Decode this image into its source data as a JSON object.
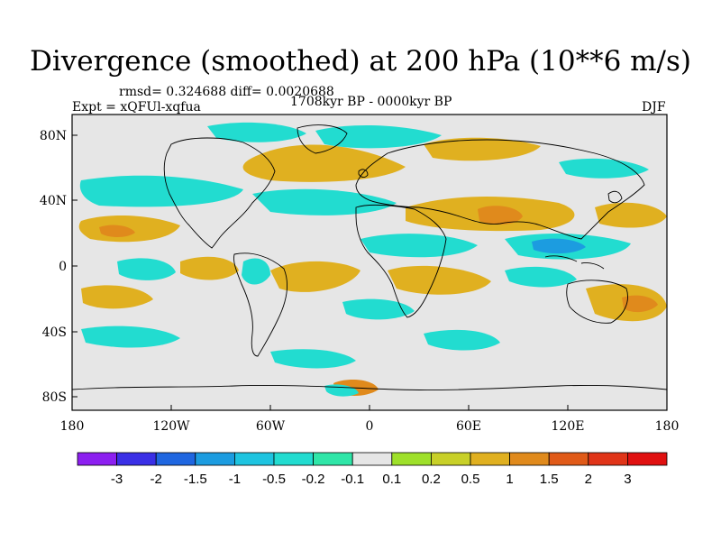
{
  "title": "Divergence (smoothed) at 200 hPa (10**6 m/s)",
  "stats": "rmsd= 0.324688 diff= 0.0020688",
  "experiment": "Expt = xQFUl-xqfua",
  "period": "1708kyr BP - 0000kyr BP",
  "season": "DJF",
  "lat_labels": [
    "80N",
    "40N",
    "0",
    "40S",
    "80S"
  ],
  "lon_labels": [
    "180",
    "120W",
    "60W",
    "0",
    "60E",
    "120E",
    "180"
  ],
  "colorbar": {
    "labels": [
      "-3",
      "-2",
      "-1.5",
      "-1",
      "-0.5",
      "-0.2",
      "-0.1",
      "0.1",
      "0.2",
      "0.5",
      "1",
      "1.5",
      "2",
      "3"
    ],
    "colors": [
      "#8c1ff0",
      "#3a2fe6",
      "#1f66e0",
      "#1c9ce0",
      "#1ec4e0",
      "#22dcd0",
      "#2fe6a8",
      "#e6e6e6",
      "#9ee02a",
      "#c8d028",
      "#e0b020",
      "#e08a1c",
      "#e05a18",
      "#e03418",
      "#e01010"
    ]
  },
  "colors": {
    "neutral": "#e6e6e6",
    "coast": "#000000",
    "frame": "#000000"
  }
}
